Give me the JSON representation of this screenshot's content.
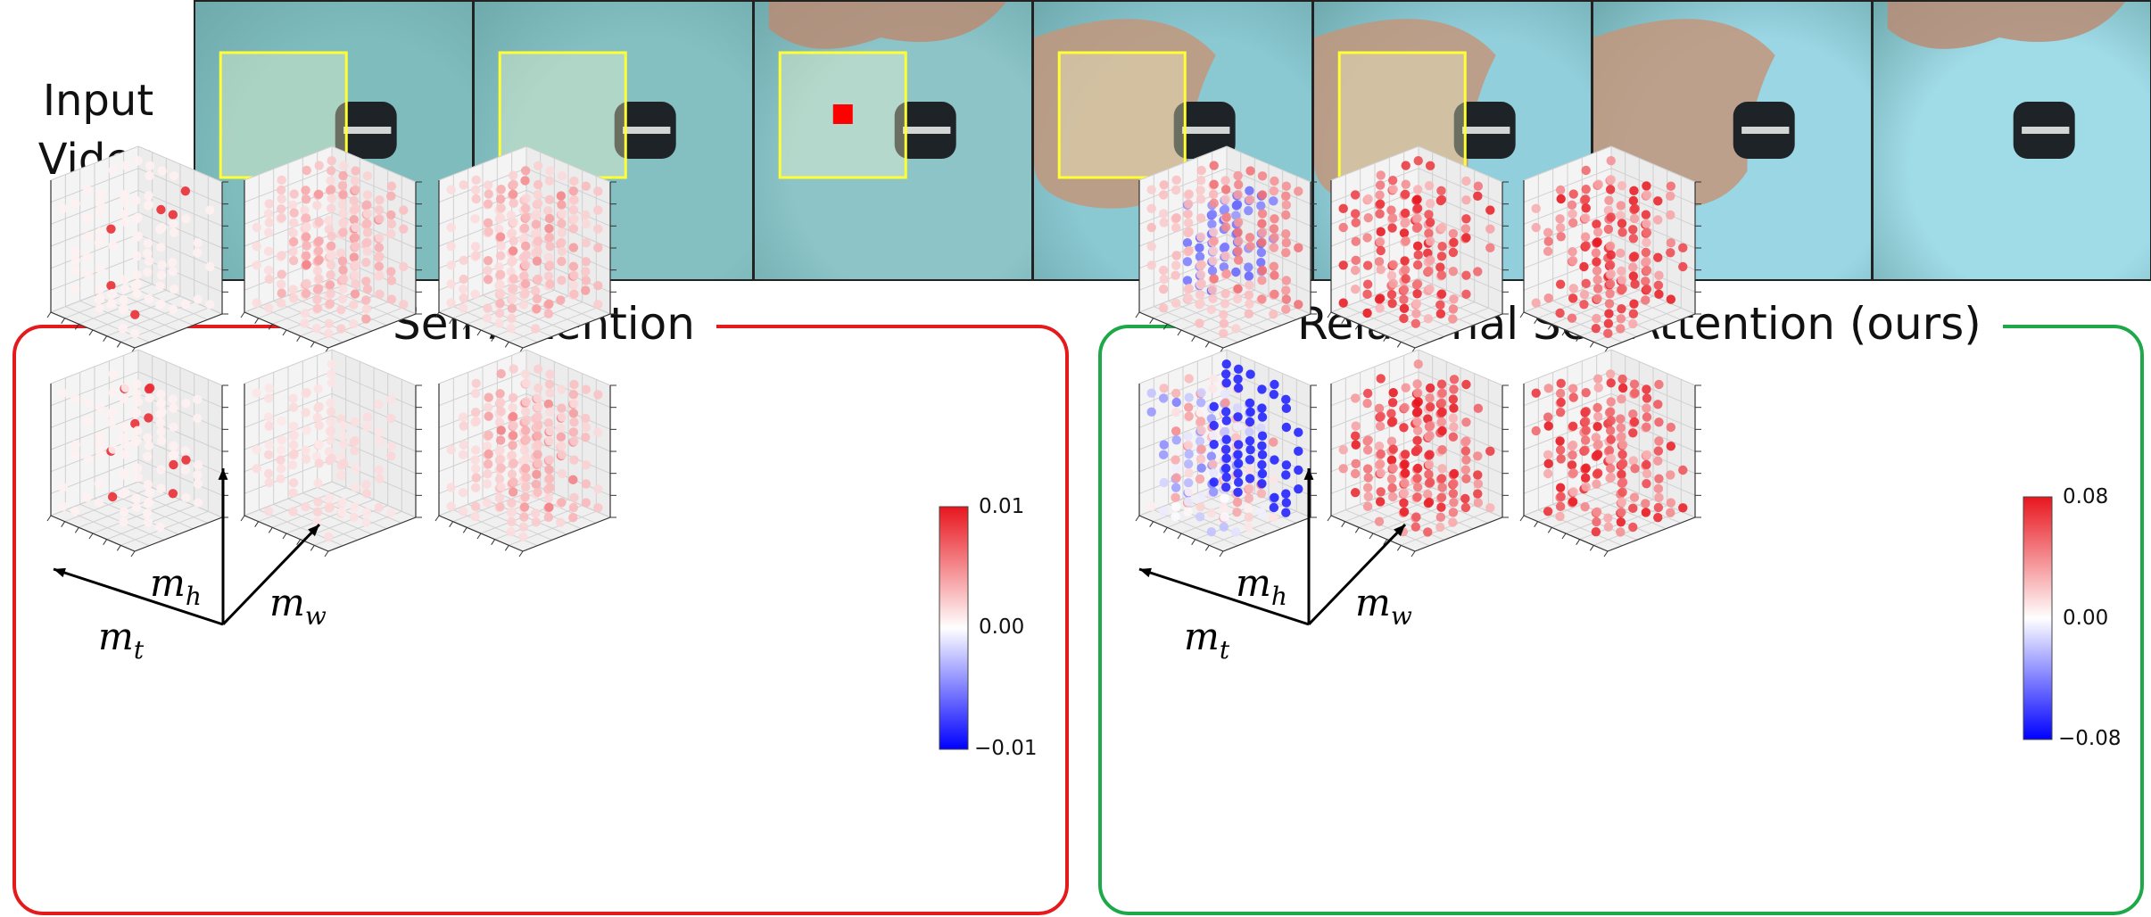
{
  "input_video": {
    "label_line1": "Input",
    "label_line2": "Video",
    "frames": [
      {
        "box": true,
        "marker": false,
        "hand": "none",
        "bg": "#7fbcbd"
      },
      {
        "box": true,
        "marker": false,
        "hand": "none",
        "bg": "#84c0c2"
      },
      {
        "box": true,
        "marker": true,
        "hand": "top",
        "bg": "#8cc4c8"
      },
      {
        "box": true,
        "marker": false,
        "hand": "grip",
        "bg": "#8ac8d2"
      },
      {
        "box": true,
        "marker": false,
        "hand": "grip",
        "bg": "#92cfdc"
      },
      {
        "box": false,
        "marker": false,
        "hand": "grip",
        "bg": "#9ad6e4"
      },
      {
        "box": false,
        "marker": false,
        "hand": "top",
        "bg": "#a0dbe8"
      }
    ],
    "box_color": "#ffff33",
    "marker_color": "#ff0000"
  },
  "panels": {
    "self_attention": {
      "title": "Self-Attention",
      "border_color": "#e41a1c",
      "colorbar": {
        "max_label": "0.01",
        "mid_label": "0.00",
        "min_label": "−0.01"
      }
    },
    "relational": {
      "title": "Relational Self-Attention (ours)",
      "border_color": "#1fa84a",
      "colorbar": {
        "max_label": "0.08",
        "mid_label": "0.00",
        "min_label": "−0.08"
      }
    }
  },
  "axes": {
    "t": "m",
    "t_sub": "t",
    "h": "m",
    "h_sub": "h",
    "w": "m",
    "w_sub": "w"
  },
  "colormap": {
    "low": "#0000ff",
    "mid": "#ffffff",
    "high": "#e8161e"
  }
}
